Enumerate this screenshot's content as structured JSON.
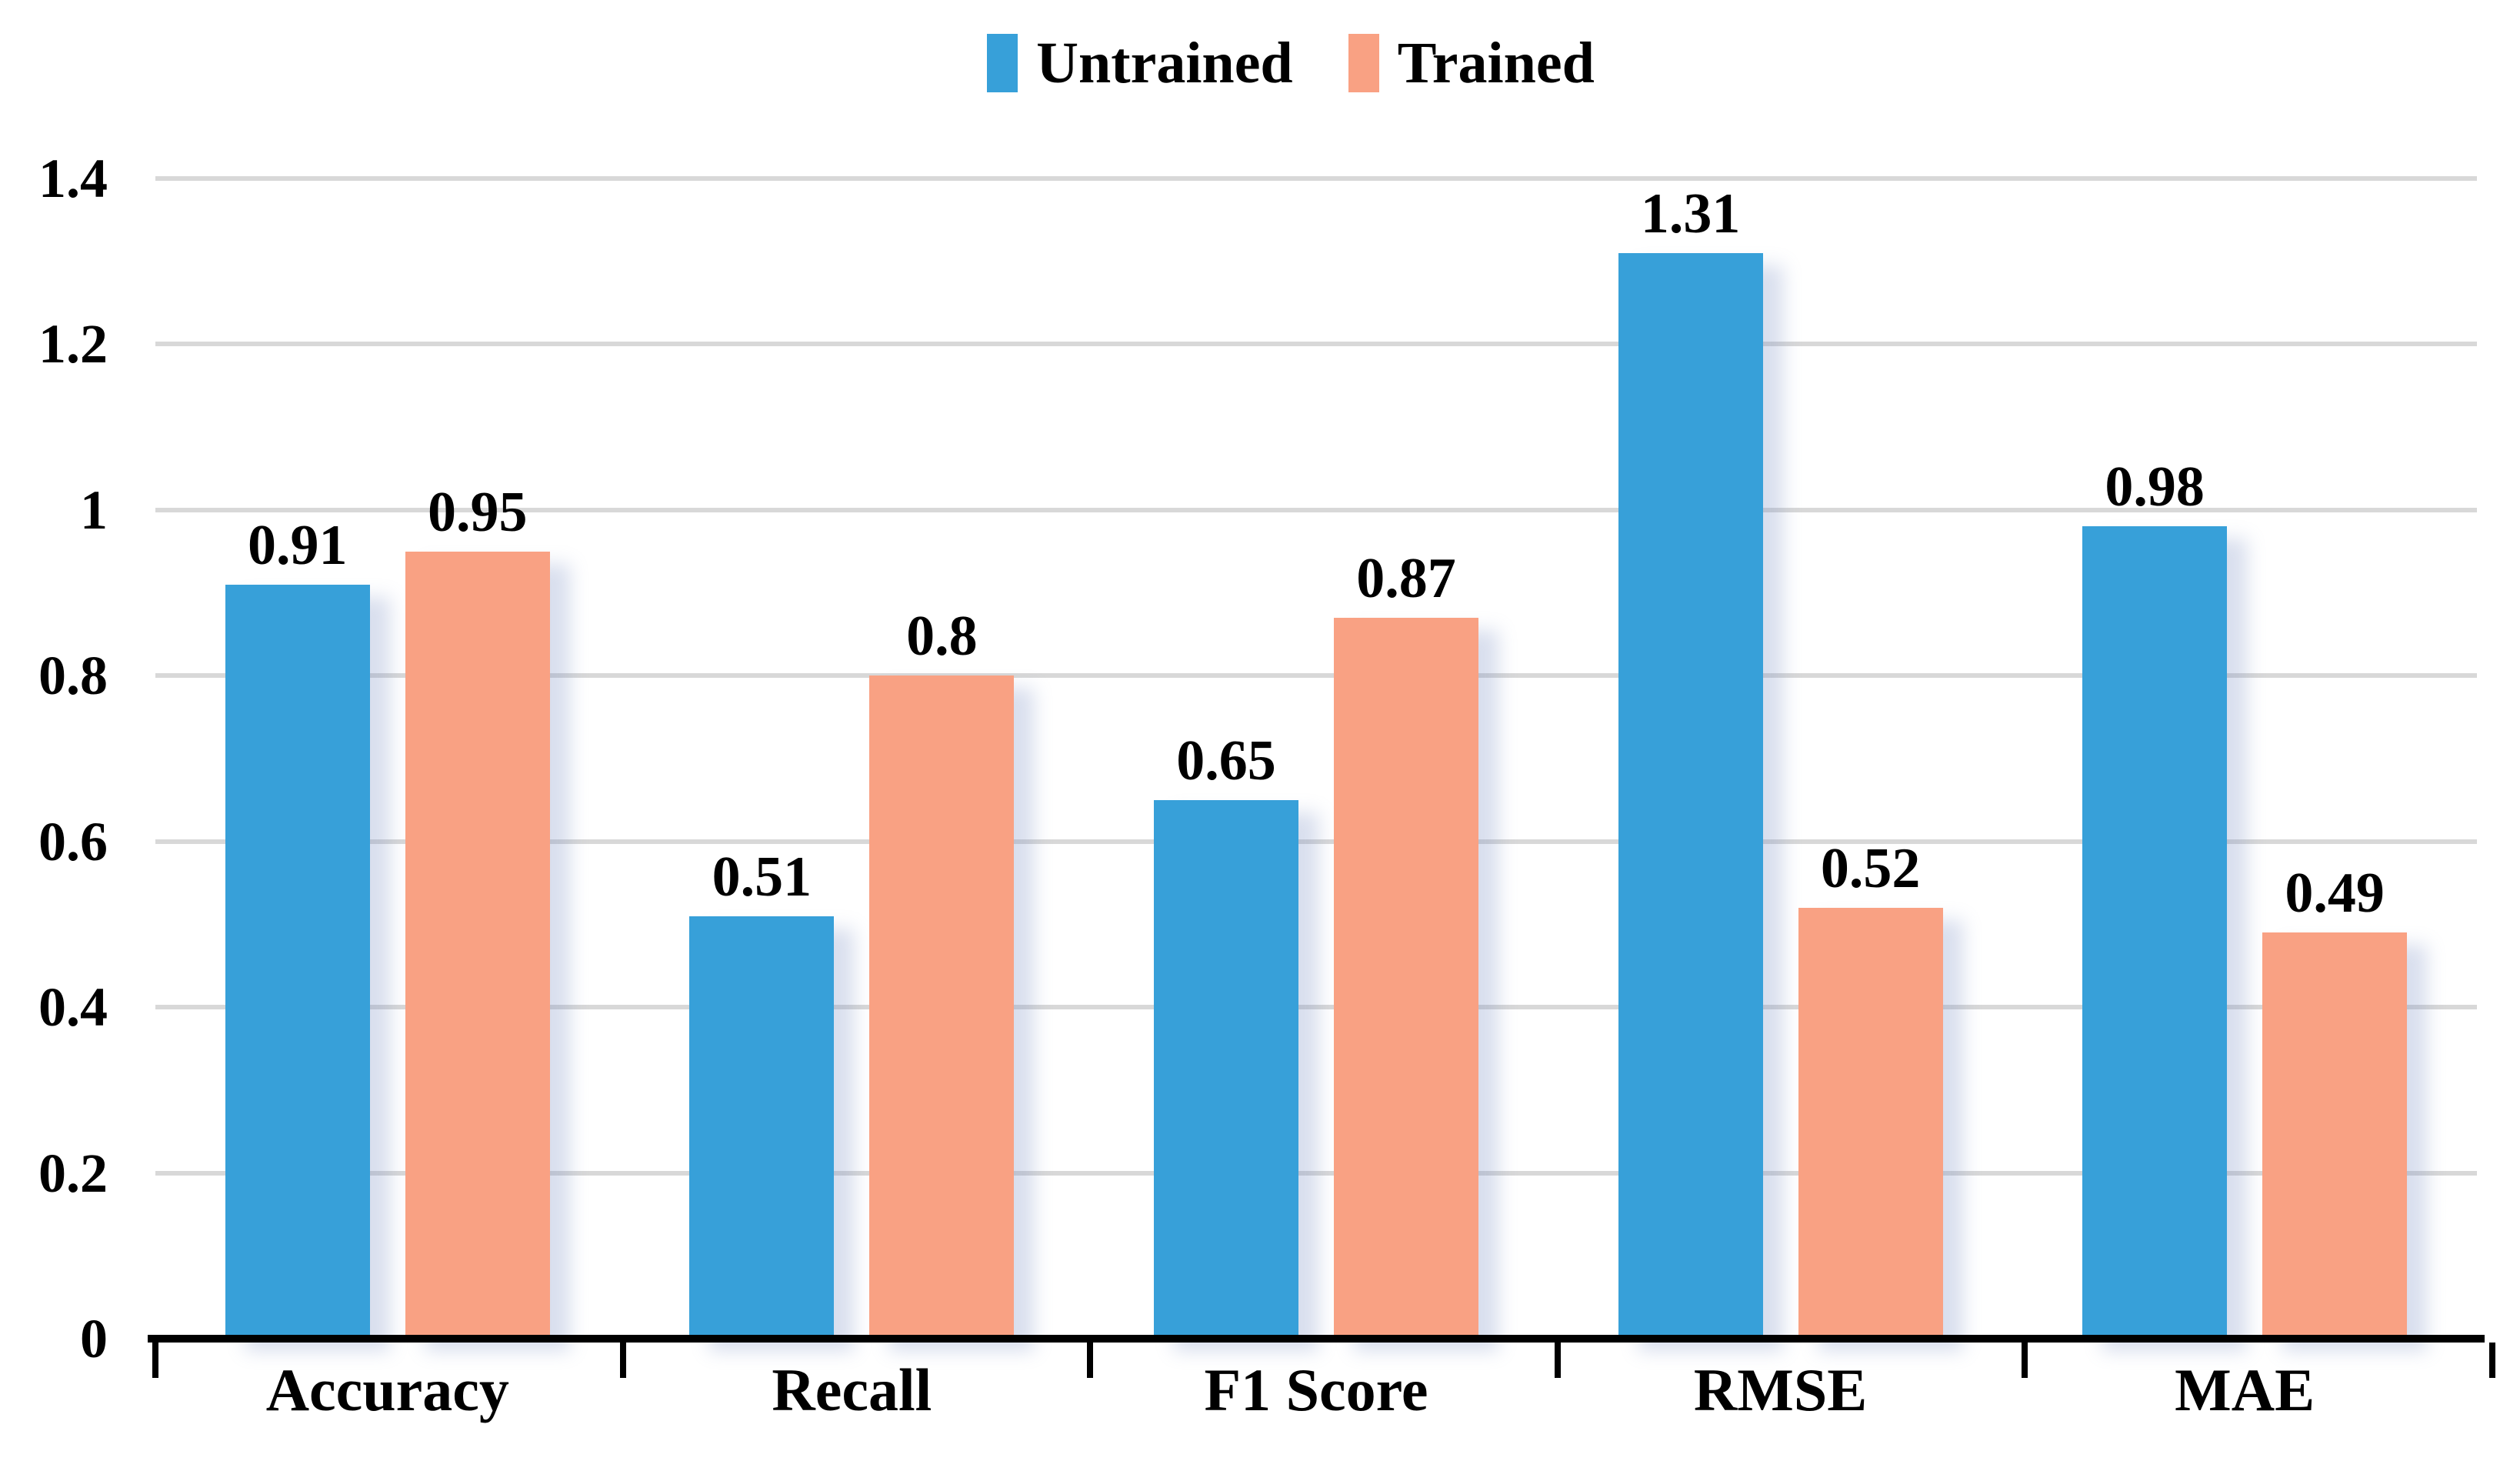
{
  "chart_data": {
    "type": "bar",
    "categories": [
      "Accuracy",
      "Recall",
      "F1 Score",
      "RMSE",
      "MAE"
    ],
    "series": [
      {
        "name": "Untrained",
        "color": "#37A0D9",
        "values": [
          0.91,
          0.51,
          0.65,
          1.31,
          0.98
        ],
        "labels": [
          "0.91",
          "0.51",
          "0.65",
          "1.31",
          "0.98"
        ]
      },
      {
        "name": "Trained",
        "color": "#F9A183",
        "values": [
          0.95,
          0.8,
          0.87,
          0.52,
          0.49
        ],
        "labels": [
          "0.95",
          "0.8",
          "0.87",
          "0.52",
          "0.49"
        ]
      }
    ],
    "title": "",
    "xlabel": "",
    "ylabel": "",
    "ylim": [
      0,
      1.4
    ],
    "yticks": [
      0,
      0.2,
      0.4,
      0.6,
      0.8,
      1,
      1.2,
      1.4
    ],
    "ytick_labels": [
      "0",
      "0.2",
      "0.4",
      "0.6",
      "0.8",
      "1",
      "1.2",
      "1.4"
    ],
    "grid": true,
    "legend_position": "top"
  },
  "colors": {
    "background": "#FFFFFF",
    "gridline": "#D8D8D8",
    "axis": "#000000",
    "text": "#000000",
    "untrained": "#37A0D9",
    "trained": "#F9A183"
  }
}
